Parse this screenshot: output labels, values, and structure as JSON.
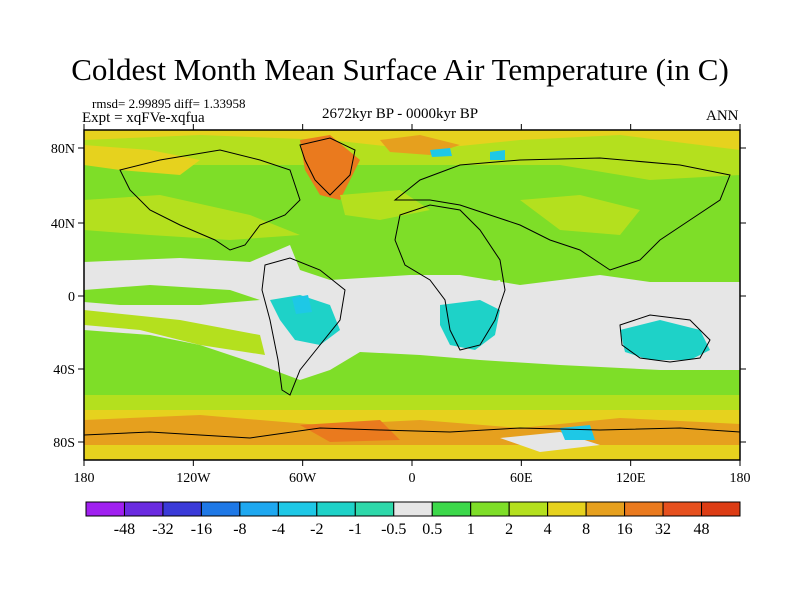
{
  "title": "Coldest Month Mean Surface Air Temperature (in C)",
  "stats": "rmsd= 2.99895 diff= 1.33958",
  "experiment": "Expt = xqFVe-xqfua",
  "period": "2672kyr BP - 0000kyr BP",
  "season": "ANN",
  "map": {
    "lat_labels": [
      "80N",
      "40N",
      "0",
      "40S",
      "80S"
    ],
    "lon_labels": [
      "180",
      "120W",
      "60W",
      "0",
      "60E",
      "120E",
      "180"
    ]
  },
  "colorbar": {
    "labels": [
      "-48",
      "-32",
      "-16",
      "-8",
      "-4",
      "-2",
      "-1",
      "-0.5",
      "0.5",
      "1",
      "2",
      "4",
      "8",
      "16",
      "32",
      "48"
    ],
    "colors": [
      "#a020f0",
      "#6a2be0",
      "#3a3ad8",
      "#1e78e6",
      "#1ea8f0",
      "#1ec8e6",
      "#1ed2c8",
      "#2ed8aa",
      "#e6e6e6",
      "#3cd84a",
      "#7ede28",
      "#b4e01e",
      "#e6d21e",
      "#e6a01e",
      "#ea7a1e",
      "#e6501e",
      "#dc3c14"
    ]
  },
  "palette": {
    "neutral": "#e6e6e6",
    "green": "#7ede28",
    "yellow_green": "#b4e01e",
    "yellow": "#e6d21e",
    "orange": "#e6a01e",
    "dark_orange": "#ea7a1e",
    "cyan": "#1ed2c8",
    "light_blue": "#1ec8e6"
  }
}
